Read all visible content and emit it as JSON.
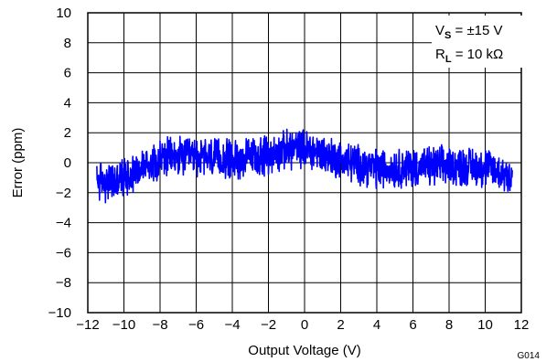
{
  "chart_data": {
    "type": "line",
    "xlabel": "Output Voltage (V)",
    "ylabel": "Error (ppm)",
    "xlim": [
      -12,
      12
    ],
    "ylim": [
      -10,
      10
    ],
    "x_ticks": [
      -12,
      -10,
      -8,
      -6,
      -4,
      -2,
      0,
      2,
      4,
      6,
      8,
      10,
      12
    ],
    "x_tick_labels": [
      "−12",
      "−10",
      "−8",
      "−6",
      "−4",
      "−2",
      "0",
      "2",
      "4",
      "6",
      "8",
      "10",
      "12"
    ],
    "y_ticks": [
      -10,
      -8,
      -6,
      -4,
      -2,
      0,
      2,
      4,
      6,
      8,
      10
    ],
    "y_tick_labels": [
      "−10",
      "−8",
      "−6",
      "−4",
      "−2",
      "0",
      "2",
      "4",
      "6",
      "8",
      "10"
    ],
    "grid": true,
    "series": [
      {
        "color": "#0000ff",
        "x_range": [
          -11.5,
          11.5
        ],
        "trend": {
          "x": [
            -11.5,
            -10.5,
            -9.5,
            -8,
            -6,
            -4,
            -2,
            -0.5,
            0.5,
            2,
            4,
            6,
            8,
            10,
            11.5
          ],
          "y": [
            -1.2,
            -1.3,
            -0.6,
            0.3,
            0.4,
            0.2,
            0.5,
            1.0,
            0.8,
            0.2,
            -0.4,
            -0.3,
            -0.2,
            -0.3,
            -0.9
          ]
        },
        "band_halfwidth_ppm": 1.1
      }
    ],
    "annotations": {
      "vs_main": "V",
      "vs_sub": "S",
      "vs_value": " = ±15 V",
      "rl_main": "R",
      "rl_sub": "L",
      "rl_value": " = 10 kΩ"
    },
    "figure_code": "G014"
  }
}
